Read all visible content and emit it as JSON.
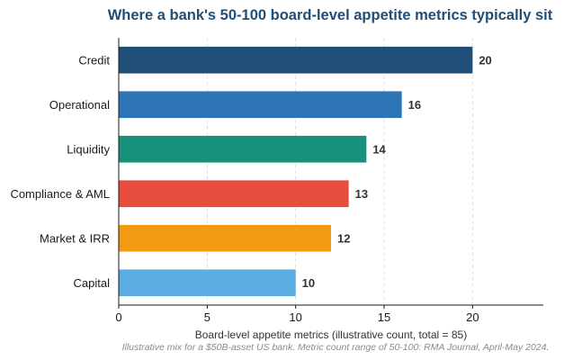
{
  "chart_data": {
    "type": "bar",
    "orientation": "horizontal",
    "title": "Where a bank's 50-100 board-level appetite metrics typically sit",
    "categories": [
      "Credit",
      "Operational",
      "Liquidity",
      "Compliance & AML",
      "Market & IRR",
      "Capital"
    ],
    "values": [
      20,
      16,
      14,
      13,
      12,
      10
    ],
    "colors": [
      "#1f4e79",
      "#2e75b6",
      "#17917a",
      "#e74c3c",
      "#f39c12",
      "#5dade2"
    ],
    "xlabel": "Board-level appetite metrics (illustrative count, total = 85)",
    "xlim": [
      0,
      24
    ],
    "xticks": [
      0,
      5,
      10,
      15,
      20
    ],
    "grid": "vertical dashed",
    "note": "Illustrative mix for a $50B-asset US bank. Metric count range of 50-100: RMA Journal, April-May 2024."
  }
}
